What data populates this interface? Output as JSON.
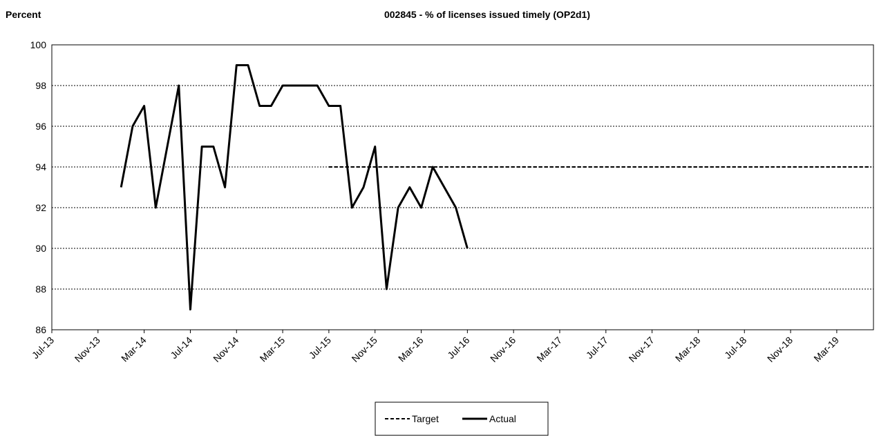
{
  "chart_data": {
    "type": "line",
    "title": "002845 - % of licenses issued timely (OP2d1)",
    "ylabel": "Percent",
    "categories": [
      "Jul-13",
      null,
      null,
      null,
      "Nov-13",
      null,
      null,
      null,
      "Mar-14",
      null,
      null,
      null,
      "Jul-14",
      null,
      null,
      null,
      "Nov-14",
      null,
      null,
      null,
      "Mar-15",
      null,
      null,
      null,
      "Jul-15",
      null,
      null,
      null,
      "Nov-15",
      null,
      null,
      null,
      "Mar-16",
      null,
      null,
      null,
      "Jul-16",
      null,
      null,
      null,
      "Nov-16",
      null,
      null,
      null,
      "Mar-17",
      null,
      null,
      null,
      "Jul-17",
      null,
      null,
      null,
      "Nov-17",
      null,
      null,
      null,
      "Mar-18",
      null,
      null,
      null,
      "Jul-18",
      null,
      null,
      null,
      "Nov-18",
      null,
      null,
      null,
      "Mar-19",
      null,
      null,
      null
    ],
    "series": [
      {
        "name": "Target",
        "color": "#000000",
        "linestyle": "dashed",
        "values": [
          null,
          null,
          null,
          null,
          null,
          null,
          null,
          null,
          null,
          null,
          null,
          null,
          null,
          null,
          null,
          null,
          null,
          null,
          null,
          null,
          null,
          null,
          null,
          null,
          94,
          94,
          94,
          94,
          94,
          94,
          94,
          94,
          94,
          94,
          94,
          94,
          94,
          94,
          94,
          94,
          94,
          94,
          94,
          94,
          94,
          94,
          94,
          94,
          94,
          94,
          94,
          94,
          94,
          94,
          94,
          94,
          94,
          94,
          94,
          94,
          94,
          94,
          94,
          94,
          94,
          94,
          94,
          94,
          94,
          94,
          94,
          94
        ]
      },
      {
        "name": "Actual",
        "color": "#000000",
        "linestyle": "solid",
        "values": [
          null,
          null,
          null,
          null,
          null,
          null,
          93,
          96,
          97,
          92,
          95,
          98,
          87,
          95,
          95,
          93,
          99,
          99,
          97,
          97,
          98,
          98,
          98,
          98,
          97,
          97,
          92,
          93,
          95,
          88,
          92,
          93,
          92,
          94,
          93,
          92,
          90,
          null,
          null,
          null,
          null,
          null,
          null,
          null,
          null,
          null,
          null,
          null,
          null,
          null,
          null,
          null,
          null,
          null,
          null,
          null,
          null,
          null,
          null,
          null,
          null,
          null,
          null,
          null,
          null,
          null,
          null,
          null,
          null,
          null,
          null,
          null
        ]
      }
    ],
    "ylim": [
      86,
      100
    ],
    "yticks": [
      86,
      88,
      90,
      92,
      94,
      96,
      98,
      100
    ],
    "grid": true,
    "legend": "bottom"
  }
}
